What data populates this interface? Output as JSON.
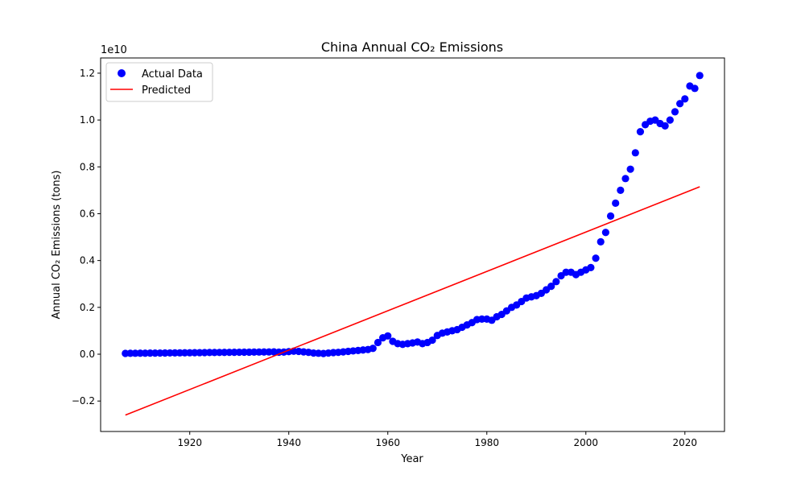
{
  "chart_data": {
    "type": "scatter",
    "title": "China Annual CO₂ Emissions",
    "xlabel": "Year",
    "ylabel": "Annual CO₂ Emissions (tons)",
    "offset_text": "1e10",
    "xlim": [
      1902,
      2028
    ],
    "ylim": [
      -0.33,
      1.265
    ],
    "y_scale": 10000000000,
    "x_ticks": [
      1920,
      1940,
      1960,
      1980,
      2000,
      2020
    ],
    "x_tick_labels": [
      "1920",
      "1940",
      "1960",
      "1980",
      "2000",
      "2020"
    ],
    "y_ticks": [
      -0.2,
      0.0,
      0.2,
      0.4,
      0.6,
      0.8,
      1.0,
      1.2
    ],
    "y_tick_labels": [
      "−0.2",
      "0.0",
      "0.2",
      "0.4",
      "0.6",
      "0.8",
      "1.0",
      "1.2"
    ],
    "grid": false,
    "legend_position": "top-left",
    "series": [
      {
        "name": "Actual Data",
        "kind": "scatter",
        "color": "#0000ff",
        "x": [
          1907,
          1908,
          1909,
          1910,
          1911,
          1912,
          1913,
          1914,
          1915,
          1916,
          1917,
          1918,
          1919,
          1920,
          1921,
          1922,
          1923,
          1924,
          1925,
          1926,
          1927,
          1928,
          1929,
          1930,
          1931,
          1932,
          1933,
          1934,
          1935,
          1936,
          1937,
          1938,
          1939,
          1940,
          1941,
          1942,
          1943,
          1944,
          1945,
          1946,
          1947,
          1948,
          1949,
          1950,
          1951,
          1952,
          1953,
          1954,
          1955,
          1956,
          1957,
          1958,
          1959,
          1960,
          1961,
          1962,
          1963,
          1964,
          1965,
          1966,
          1967,
          1968,
          1969,
          1970,
          1971,
          1972,
          1973,
          1974,
          1975,
          1976,
          1977,
          1978,
          1979,
          1980,
          1981,
          1982,
          1983,
          1984,
          1985,
          1986,
          1987,
          1988,
          1989,
          1990,
          1991,
          1992,
          1993,
          1994,
          1995,
          1996,
          1997,
          1998,
          1999,
          2000,
          2001,
          2002,
          2003,
          2004,
          2005,
          2006,
          2007,
          2008,
          2009,
          2010,
          2011,
          2012,
          2013,
          2014,
          2015,
          2016,
          2017,
          2018,
          2019,
          2020,
          2021,
          2022,
          2023
        ],
        "y": [
          0.0035,
          0.0038,
          0.004,
          0.0042,
          0.0044,
          0.0046,
          0.0048,
          0.005,
          0.0052,
          0.0054,
          0.0056,
          0.0058,
          0.006,
          0.0062,
          0.0064,
          0.0066,
          0.007,
          0.0072,
          0.0074,
          0.0076,
          0.0078,
          0.008,
          0.0082,
          0.0084,
          0.0086,
          0.0088,
          0.009,
          0.0092,
          0.0094,
          0.0096,
          0.0098,
          0.0085,
          0.009,
          0.011,
          0.013,
          0.012,
          0.01,
          0.008,
          0.005,
          0.004,
          0.003,
          0.005,
          0.007,
          0.008,
          0.01,
          0.012,
          0.014,
          0.016,
          0.018,
          0.02,
          0.025,
          0.05,
          0.07,
          0.078,
          0.055,
          0.045,
          0.042,
          0.045,
          0.048,
          0.052,
          0.045,
          0.05,
          0.06,
          0.08,
          0.09,
          0.095,
          0.1,
          0.105,
          0.115,
          0.125,
          0.135,
          0.148,
          0.15,
          0.15,
          0.145,
          0.16,
          0.17,
          0.185,
          0.2,
          0.21,
          0.225,
          0.24,
          0.245,
          0.25,
          0.26,
          0.275,
          0.29,
          0.31,
          0.335,
          0.35,
          0.35,
          0.34,
          0.35,
          0.36,
          0.37,
          0.41,
          0.48,
          0.52,
          0.59,
          0.645,
          0.7,
          0.75,
          0.79,
          0.86,
          0.95,
          0.98,
          0.995,
          1.0,
          0.985,
          0.975,
          1.0,
          1.035,
          1.07,
          1.09,
          1.145,
          1.135,
          1.19
        ]
      },
      {
        "name": "Predicted",
        "kind": "line",
        "color": "#ff0000",
        "x": [
          1907,
          2023
        ],
        "y": [
          -0.26,
          0.715
        ]
      }
    ]
  }
}
